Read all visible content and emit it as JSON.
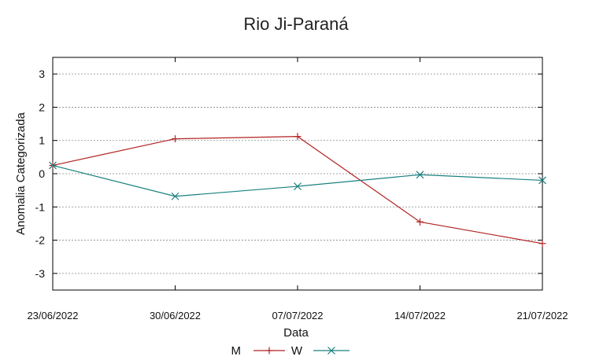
{
  "chart_data": {
    "type": "line",
    "title": "Rio Ji-Paraná",
    "xlabel": "Data",
    "ylabel": "Anomalia Categorizada",
    "x": [
      "23/06/2022",
      "30/06/2022",
      "07/07/2022",
      "14/07/2022",
      "21/07/2022"
    ],
    "ylim": [
      -3.5,
      3.5
    ],
    "yticks": [
      3,
      2,
      1,
      0,
      -1,
      -2,
      -3
    ],
    "ytick_labels": [
      "3",
      "2",
      "1",
      "0",
      "-1",
      "-2",
      "-3"
    ],
    "grid": true,
    "legend_position": "bottom",
    "series": [
      {
        "name": "M",
        "values": [
          0.25,
          1.05,
          1.12,
          -1.45,
          -2.1
        ],
        "color": "#b22222",
        "marker": "plus"
      },
      {
        "name": "W",
        "values": [
          0.25,
          -0.68,
          -0.38,
          -0.03,
          -0.2
        ],
        "color": "#1a8080",
        "marker": "cross"
      }
    ]
  }
}
